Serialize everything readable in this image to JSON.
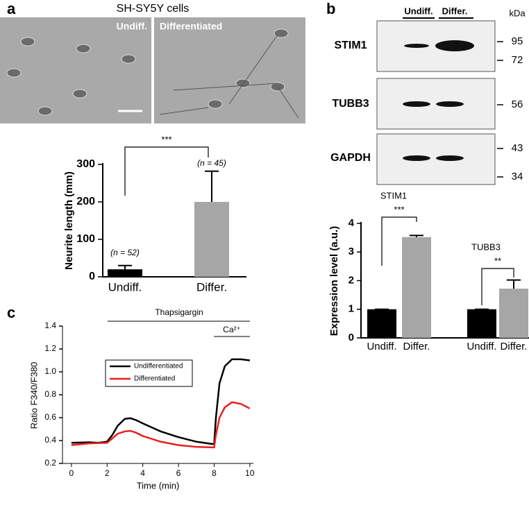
{
  "panel_labels": [
    "a",
    "b",
    "c"
  ],
  "images": {
    "title": "SH-SY5Y cells",
    "labels": [
      "Undiff.",
      "Differentiated"
    ]
  },
  "blot": {
    "bands": [
      "STIM1",
      "TUBB3",
      "GAPDH"
    ],
    "lanes": [
      "Undiff.",
      "Differ."
    ],
    "unit": "kDa",
    "markers": [
      95,
      72,
      56,
      43,
      34
    ]
  },
  "chart_data": [
    {
      "type": "bar",
      "ylabel": "Neurite length (mm)",
      "categories": [
        "Undiff.",
        "Differ."
      ],
      "values": [
        20,
        200
      ],
      "errors": [
        10,
        82
      ],
      "colors": [
        "#000000",
        "#a6a6a6"
      ],
      "annotations": [
        "(n = 52)",
        "(n = 45)"
      ],
      "significance": [
        "***"
      ],
      "ylim": [
        0,
        300
      ],
      "yticks": [
        0,
        100,
        200,
        300
      ]
    },
    {
      "type": "grouped-bar",
      "ylabel": "Expression level (a.u.)",
      "groups": [
        "STIM1",
        "TUBB3"
      ],
      "categories": [
        "Undiff.",
        "Differ.",
        "Undiff.",
        "Differ."
      ],
      "values": [
        1,
        3.52,
        1,
        1.72
      ],
      "errors": [
        0,
        0.06,
        0,
        0.3
      ],
      "colors": [
        "#000000",
        "#a6a6a6",
        "#000000",
        "#a6a6a6"
      ],
      "significance": [
        "***",
        "**"
      ],
      "ylim": [
        0,
        4
      ],
      "yticks": [
        0,
        1,
        2,
        3,
        4
      ]
    },
    {
      "type": "line",
      "xlabel": "Time (min)",
      "ylabel": "Ratio F340/F380",
      "annotations": [
        "Thapsigargin",
        "Ca²⁺"
      ],
      "legend": "upper left",
      "x": [
        0,
        1,
        1.5,
        2,
        2.3,
        2.6,
        3,
        3.3,
        3.6,
        4,
        5,
        6,
        7,
        7.9,
        8.0,
        8.1,
        8.3,
        8.6,
        9,
        9.5,
        10
      ],
      "series": [
        {
          "name": "Undifferentiated",
          "color": "#000000",
          "values": [
            0.38,
            0.385,
            0.38,
            0.39,
            0.45,
            0.53,
            0.59,
            0.595,
            0.58,
            0.55,
            0.48,
            0.43,
            0.39,
            0.37,
            0.37,
            0.6,
            0.9,
            1.05,
            1.11,
            1.11,
            1.1
          ]
        },
        {
          "name": "Differentiated",
          "color": "#e8201c",
          "values": [
            0.36,
            0.375,
            0.378,
            0.38,
            0.42,
            0.46,
            0.48,
            0.485,
            0.47,
            0.44,
            0.39,
            0.36,
            0.345,
            0.34,
            0.34,
            0.45,
            0.6,
            0.69,
            0.735,
            0.72,
            0.68
          ]
        }
      ],
      "xlim": [
        -0.5,
        10.2
      ],
      "ylim": [
        0.2,
        1.4
      ],
      "xticks": [
        0,
        2,
        4,
        6,
        8,
        10
      ],
      "yticks": [
        0.2,
        0.4,
        0.6,
        0.8,
        {
          "value": 1,
          "label": "1.0"
        },
        1.2,
        1.4
      ]
    }
  ]
}
